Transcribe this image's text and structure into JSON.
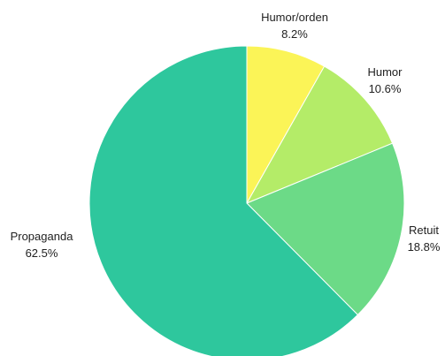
{
  "chart_data": {
    "type": "pie",
    "title": "",
    "start": "top",
    "direction": "clockwise",
    "legend": "none",
    "slices": [
      {
        "label": "Humor/orden",
        "value": 8.2,
        "display": "8.2%",
        "color": "#fbf457"
      },
      {
        "label": "Humor",
        "value": 10.6,
        "display": "10.6%",
        "color": "#b4ec68"
      },
      {
        "label": "Retuit",
        "value": 18.8,
        "display": "18.8%",
        "color": "#6cda87"
      },
      {
        "label": "Propaganda",
        "value": 62.5,
        "display": "62.5%",
        "color": "#2ec79d"
      }
    ]
  }
}
